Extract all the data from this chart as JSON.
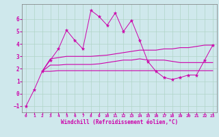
{
  "xlabel": "Windchill (Refroidissement éolien,°C)",
  "background_color": "#cfe8ec",
  "grid_color": "#b0d4c8",
  "line_color": "#cc00aa",
  "x_values": [
    0,
    1,
    2,
    3,
    4,
    5,
    6,
    7,
    8,
    9,
    10,
    11,
    12,
    13,
    14,
    15,
    16,
    17,
    18,
    19,
    20,
    21,
    22,
    23
  ],
  "y_spiky": [
    -1.0,
    0.3,
    1.8,
    2.7,
    3.6,
    5.1,
    4.3,
    3.6,
    6.7,
    6.2,
    5.5,
    6.5,
    5.0,
    5.9,
    4.3,
    2.6,
    1.8,
    1.3,
    1.15,
    1.3,
    1.5,
    1.5,
    2.7,
    3.9
  ],
  "y_upper": [
    null,
    null,
    1.8,
    2.8,
    2.9,
    3.0,
    3.0,
    3.0,
    3.0,
    3.05,
    3.1,
    3.2,
    3.3,
    3.4,
    3.5,
    3.5,
    3.5,
    3.6,
    3.6,
    3.7,
    3.7,
    3.8,
    3.9,
    3.9
  ],
  "y_mid": [
    null,
    null,
    1.8,
    2.3,
    2.3,
    2.35,
    2.35,
    2.35,
    2.35,
    2.4,
    2.5,
    2.6,
    2.7,
    2.7,
    2.8,
    2.7,
    2.7,
    2.7,
    2.6,
    2.5,
    2.5,
    2.5,
    2.5,
    2.5
  ],
  "y_lower": [
    null,
    null,
    1.8,
    1.8,
    1.85,
    1.85,
    1.85,
    1.85,
    1.85,
    1.85,
    1.85,
    1.85,
    1.85,
    1.85,
    1.85,
    1.85,
    1.85,
    1.85,
    1.85,
    1.85,
    1.85,
    1.85,
    1.85,
    1.85
  ],
  "ylim": [
    -1.5,
    7.2
  ],
  "xlim": [
    -0.5,
    23.5
  ],
  "yticks": [
    -1,
    0,
    1,
    2,
    3,
    4,
    5,
    6
  ],
  "xticks": [
    0,
    1,
    2,
    3,
    4,
    5,
    6,
    7,
    8,
    9,
    10,
    11,
    12,
    13,
    14,
    15,
    16,
    17,
    18,
    19,
    20,
    21,
    22,
    23
  ],
  "xlabel_fontsize": 5.5,
  "tick_fontsize_x": 4.5,
  "tick_fontsize_y": 5.5
}
